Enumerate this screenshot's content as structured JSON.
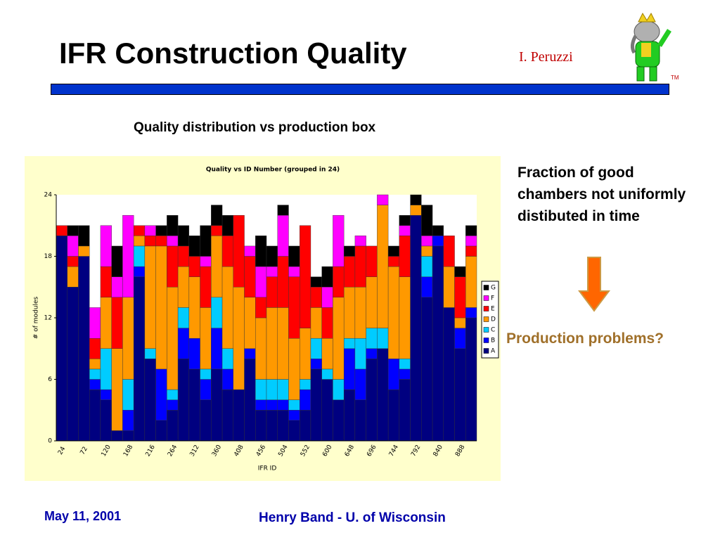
{
  "slide": {
    "title": "IFR Construction Quality",
    "author": "I. Peruzzi",
    "trademark": "TM",
    "subtitle": "Quality distribution vs production box",
    "note": "Fraction of good chambers not uniformly distibuted in time",
    "question": "Production problems?",
    "date": "May 11, 2001",
    "footer": "Henry Band -  U. of Wisconsin"
  },
  "chart_data": {
    "type": "stacked_bar",
    "title": "Quality vs ID Number (grouped in 24)",
    "x_label": "IFR ID",
    "y_label": "# of modules",
    "categories": [
      "24",
      null,
      "72",
      null,
      "120",
      null,
      "168",
      null,
      "216",
      null,
      "264",
      null,
      "312",
      null,
      "360",
      null,
      "408",
      null,
      "456",
      null,
      "504",
      null,
      "552",
      null,
      "600",
      null,
      "648",
      null,
      "696",
      null,
      "744",
      null,
      "792",
      null,
      "840",
      null,
      "888",
      null
    ],
    "ylim": [
      0,
      24
    ],
    "yticks": [
      0,
      6,
      12,
      18,
      24
    ],
    "legend": "right",
    "series": [
      {
        "name": "A",
        "color": "#000080",
        "values": [
          20,
          15,
          18,
          5,
          4,
          1,
          1,
          16,
          8,
          2,
          3,
          8,
          7,
          4,
          7,
          5,
          5,
          8,
          3,
          3,
          3,
          2,
          3,
          7,
          6,
          4,
          5,
          4,
          8,
          9,
          5,
          6,
          22,
          14,
          19,
          13,
          9,
          12
        ]
      },
      {
        "name": "B",
        "color": "#0000ff",
        "values": [
          0,
          0,
          0,
          1,
          1,
          0,
          2,
          1,
          0,
          5,
          1,
          3,
          3,
          2,
          4,
          2,
          0,
          1,
          1,
          1,
          1,
          1,
          2,
          1,
          0,
          0,
          4,
          3,
          1,
          0,
          3,
          1,
          0,
          2,
          1,
          0,
          2,
          1
        ]
      },
      {
        "name": "C",
        "color": "#00ccff",
        "values": [
          0,
          0,
          0,
          1,
          4,
          0,
          3,
          2,
          1,
          0,
          1,
          2,
          0,
          1,
          3,
          2,
          0,
          0,
          2,
          2,
          2,
          1,
          1,
          2,
          1,
          2,
          1,
          3,
          2,
          2,
          0,
          1,
          0,
          2,
          0,
          0,
          0,
          0
        ]
      },
      {
        "name": "D",
        "color": "#ff9900",
        "values": [
          0,
          2,
          1,
          1,
          5,
          8,
          8,
          1,
          10,
          12,
          10,
          4,
          6,
          6,
          6,
          8,
          10,
          5,
          6,
          7,
          7,
          6,
          5,
          3,
          3,
          8,
          5,
          5,
          5,
          12,
          9,
          8,
          1,
          1,
          0,
          4,
          1,
          5
        ]
      },
      {
        "name": "E",
        "color": "#ff0000",
        "values": [
          1,
          1,
          0,
          2,
          3,
          5,
          0,
          1,
          1,
          1,
          4,
          2,
          2,
          4,
          1,
          3,
          7,
          4,
          2,
          3,
          5,
          6,
          10,
          2,
          3,
          3,
          3,
          4,
          3,
          0,
          1,
          4,
          0,
          0,
          0,
          3,
          4,
          1
        ]
      },
      {
        "name": "F",
        "color": "#ff00ff",
        "values": [
          0,
          2,
          0,
          3,
          4,
          2,
          8,
          0,
          1,
          0,
          1,
          0,
          0,
          1,
          0,
          0,
          0,
          1,
          3,
          1,
          4,
          1,
          0,
          0,
          2,
          5,
          0,
          1,
          0,
          1,
          0,
          1,
          0,
          1,
          0,
          0,
          0,
          1
        ]
      },
      {
        "name": "G",
        "color": "#000000",
        "values": [
          0,
          1,
          2,
          0,
          0,
          3,
          0,
          0,
          0,
          1,
          2,
          2,
          2,
          3,
          2,
          2,
          0,
          0,
          3,
          2,
          1,
          2,
          0,
          1,
          2,
          0,
          1,
          0,
          0,
          0,
          1,
          1,
          1,
          3,
          1,
          0,
          1,
          1
        ]
      }
    ]
  }
}
